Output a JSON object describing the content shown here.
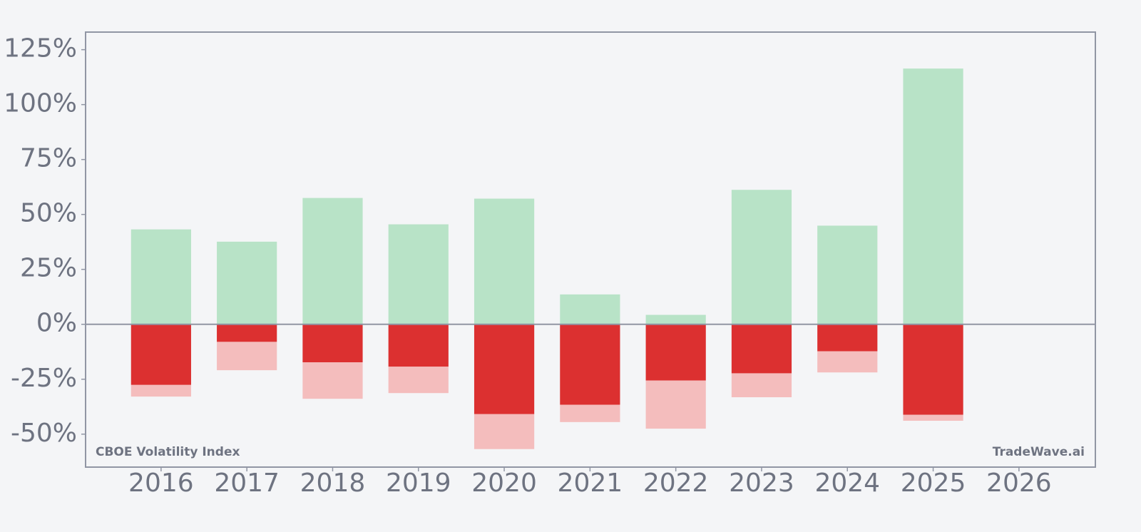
{
  "chart_data": {
    "type": "bar",
    "categories": [
      "2016",
      "2017",
      "2018",
      "2019",
      "2020",
      "2021",
      "2022",
      "2023",
      "2024",
      "2025",
      "2026"
    ],
    "series": [
      {
        "color": "#b8e3c7",
        "values": [
          43.2,
          37.6,
          57.5,
          45.5,
          57.2,
          13.6,
          4.3,
          61.2,
          44.9,
          116.4,
          null
        ]
      },
      {
        "color": "#dc3030",
        "values": [
          -27.6,
          -8.0,
          -17.3,
          -19.3,
          -40.9,
          -36.6,
          -25.6,
          -22.3,
          -12.3,
          -41.2,
          null
        ]
      },
      {
        "color": "#f4bdbd",
        "values": [
          -5.3,
          -12.9,
          -16.6,
          -12.0,
          -15.9,
          -7.9,
          -21.9,
          -10.9,
          -9.6,
          -2.7,
          null
        ]
      }
    ],
    "stacked": true,
    "ylim": [
      -65,
      133
    ],
    "yticks": [
      {
        "value": -50,
        "label": "-50%"
      },
      {
        "value": -25,
        "label": "-25%"
      },
      {
        "value": 0,
        "label": "0%"
      },
      {
        "value": 25,
        "label": "25%"
      },
      {
        "value": 50,
        "label": "50%"
      },
      {
        "value": 75,
        "label": "75%"
      },
      {
        "value": 100,
        "label": "100%"
      },
      {
        "value": 125,
        "label": "125%"
      }
    ],
    "annotations": [
      "CBOE Volatility Index",
      "TradeWave.ai"
    ]
  }
}
